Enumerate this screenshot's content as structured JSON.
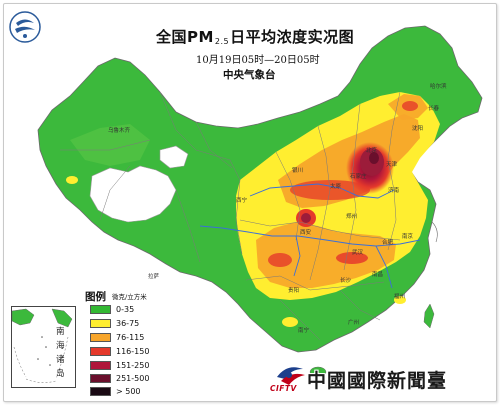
{
  "map": {
    "title_prefix": "全国PM",
    "title_sub": "2.5",
    "title_suffix": "日平均浓度实况图",
    "time_range": "10月19日05时—20日05时",
    "organization": "中央气象台",
    "colors": {
      "green": "#3cb93c",
      "light_green": "#7fd43a",
      "yellow": "#ffee30",
      "orange": "#f7a52a",
      "red": "#e5392b",
      "dark_red": "#9c1c3a",
      "maroon": "#6a0f2c",
      "black": "#1a0a14",
      "lake_white": "#ffffff",
      "river_blue": "#3a6fd9",
      "border_gray": "#7a7a7a"
    }
  },
  "legend": {
    "title": "图例",
    "unit": "微克/立方米",
    "items": [
      {
        "label": "0-35",
        "color": "#33b833"
      },
      {
        "label": "36-75",
        "color": "#ffee30"
      },
      {
        "label": "76-115",
        "color": "#f7a52a"
      },
      {
        "label": "116-150",
        "color": "#e5392b"
      },
      {
        "label": "151-250",
        "color": "#b0163a"
      },
      {
        "label": "251-500",
        "color": "#6a0f2c"
      },
      {
        "label": "> 500",
        "color": "#1a0a14"
      }
    ]
  },
  "inset": {
    "labels": [
      "南",
      "海",
      "诸",
      "岛"
    ]
  },
  "watermark": {
    "en": "CIFTV",
    "cn": "中國國際新聞臺"
  },
  "cities": [
    {
      "name": "乌鲁木齐"
    },
    {
      "name": "哈尔滨"
    },
    {
      "name": "长春"
    },
    {
      "name": "沈阳"
    },
    {
      "name": "北京"
    },
    {
      "name": "天津"
    },
    {
      "name": "石家庄"
    },
    {
      "name": "太原"
    },
    {
      "name": "济南"
    },
    {
      "name": "郑州"
    },
    {
      "name": "西安"
    },
    {
      "name": "南京"
    },
    {
      "name": "合肥"
    },
    {
      "name": "武汉"
    },
    {
      "name": "长沙"
    },
    {
      "name": "南昌"
    },
    {
      "name": "贵阳"
    },
    {
      "name": "拉萨"
    },
    {
      "name": "西宁"
    },
    {
      "name": "银川"
    },
    {
      "name": "福州"
    },
    {
      "name": "广州"
    },
    {
      "name": "南宁"
    }
  ]
}
